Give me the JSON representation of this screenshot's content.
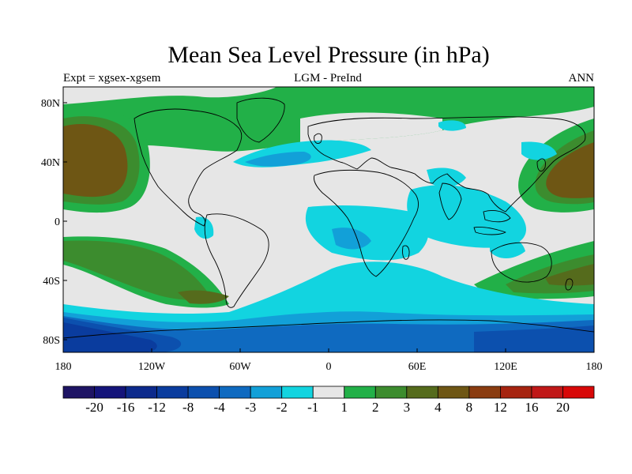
{
  "title": "Mean Sea Level Pressure (in hPa)",
  "subtitle_left": "Expt = xgsex-xgsem",
  "subtitle_center": "LGM - PreInd",
  "subtitle_right": "ANN",
  "axes": {
    "lat_labels": [
      "80N",
      "40N",
      "0",
      "40S",
      "80S"
    ],
    "lon_labels": [
      "180",
      "120W",
      "60W",
      "0",
      "60E",
      "120E",
      "180"
    ]
  },
  "colorbar": {
    "labels": [
      "-20",
      "-16",
      "-12",
      "-8",
      "-4",
      "-3",
      "-2",
      "-1",
      "1",
      "2",
      "3",
      "4",
      "8",
      "12",
      "16",
      "20"
    ],
    "colors": [
      "#1e1464",
      "#14147a",
      "#0c2a8c",
      "#0a3c9e",
      "#0c50ae",
      "#0f6ac0",
      "#12a0d8",
      "#12d4e0",
      "#e6e6e6",
      "#22b048",
      "#3c8c2e",
      "#556b1c",
      "#6e5614",
      "#8a3c10",
      "#a62410",
      "#c01818",
      "#d80808"
    ]
  },
  "colors": {
    "land_outline": "#000000",
    "neutral": "#e6e6e6"
  }
}
